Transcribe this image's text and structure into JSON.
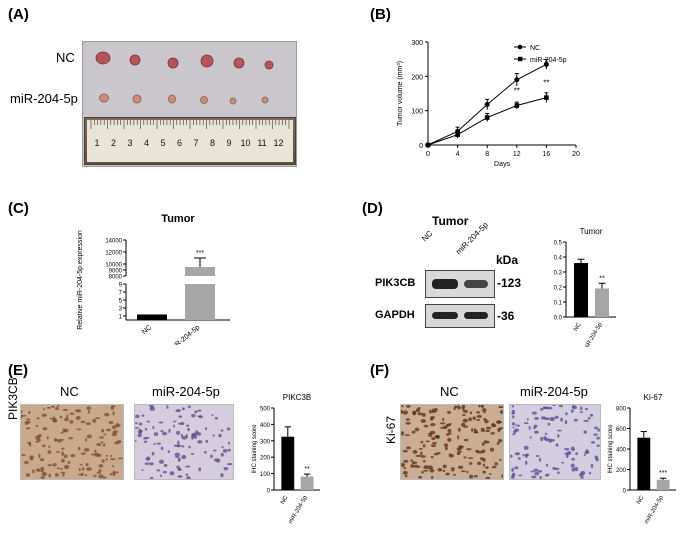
{
  "figure": {
    "panel_labels": [
      "(A)",
      "(B)",
      "(C)",
      "(D)",
      "(E)",
      "(F)"
    ]
  },
  "panelA": {
    "row_labels": [
      "NC",
      "miR-204-5p"
    ],
    "ruler_numbers": [
      "1",
      "2",
      "3",
      "4",
      "5",
      "6",
      "7",
      "8",
      "9",
      "10",
      "11",
      "12"
    ]
  },
  "panelD": {
    "title": "Tumor",
    "lanes": [
      "NC",
      "miR-204-5p"
    ],
    "kda_label": "kDa",
    "bands": [
      {
        "name": "PIK3CB",
        "kda": "-123"
      },
      {
        "name": "GAPDH",
        "kda": "-36"
      }
    ]
  },
  "panelE": {
    "row_label": "PIK3CB",
    "col_labels": [
      "NC",
      "miR-204-5p"
    ]
  },
  "panelF": {
    "row_label": "Ki-67",
    "col_labels": [
      "NC",
      "miR-204-5p"
    ]
  },
  "chart_data": [
    {
      "id": "B",
      "type": "line",
      "title": "",
      "xlabel": "Days",
      "ylabel": "Tumor volume (mm³)",
      "x": [
        0,
        4,
        8,
        12,
        16
      ],
      "xlim": [
        0,
        20
      ],
      "xticks": [
        "0",
        "4",
        "8",
        "12",
        "16",
        "20"
      ],
      "ylim": [
        0,
        300
      ],
      "yticks": [
        "0",
        "100",
        "200",
        "300"
      ],
      "legend_position": "top-right",
      "series": [
        {
          "name": "NC",
          "marker": "circle",
          "values": [
            0,
            40,
            118,
            190,
            235
          ],
          "errors": [
            0,
            12,
            15,
            18,
            14
          ]
        },
        {
          "name": "miR-204-5p",
          "marker": "square",
          "values": [
            0,
            30,
            80,
            115,
            138
          ],
          "errors": [
            0,
            10,
            12,
            10,
            14
          ]
        }
      ],
      "annotations": [
        {
          "x": 12,
          "text": "**"
        },
        {
          "x": 16,
          "text": "**"
        }
      ]
    },
    {
      "id": "C",
      "type": "bar",
      "title": "Tumor",
      "ylabel": "Relative miR-204-5p expression",
      "categories": [
        "NC",
        "miR-204-5p"
      ],
      "values": [
        1,
        9500
      ],
      "errors": [
        0.1,
        1500
      ],
      "colors": [
        "#000000",
        "#a6a6a6"
      ],
      "yticks_upper": [
        "8000",
        "9000",
        "10000",
        "12000",
        "14000"
      ],
      "yticks_lower": [
        "1",
        "3",
        "5",
        "7",
        "9"
      ],
      "axis_break": [
        9,
        8000
      ],
      "annotation": "***"
    },
    {
      "id": "D",
      "type": "bar",
      "title": "Tumor",
      "categories": [
        "NC",
        "miR-204-5p"
      ],
      "values": [
        0.36,
        0.19
      ],
      "errors": [
        0.025,
        0.035
      ],
      "colors": [
        "#000000",
        "#a6a6a6"
      ],
      "ylim": [
        0,
        0.5
      ],
      "yticks": [
        "0.0",
        "0.1",
        "0.2",
        "0.3",
        "0.4",
        "0.5"
      ],
      "annotation": "**"
    },
    {
      "id": "E",
      "type": "bar",
      "title": "PIKC3B",
      "ylabel": "IHC staining score",
      "categories": [
        "NC",
        "miR-204-5p"
      ],
      "values": [
        325,
        82
      ],
      "errors": [
        60,
        15
      ],
      "colors": [
        "#000000",
        "#a6a6a6"
      ],
      "ylim": [
        0,
        500
      ],
      "yticks": [
        "0",
        "100",
        "200",
        "300",
        "400",
        "500"
      ],
      "annotation": "**"
    },
    {
      "id": "F",
      "type": "bar",
      "title": "Ki-67",
      "ylabel": "IHC staining score",
      "categories": [
        "NC",
        "miR-204-5p"
      ],
      "values": [
        510,
        100
      ],
      "errors": [
        60,
        15
      ],
      "colors": [
        "#000000",
        "#a6a6a6"
      ],
      "ylim": [
        0,
        800
      ],
      "yticks": [
        "0",
        "200",
        "400",
        "600",
        "800"
      ],
      "annotation": "***"
    }
  ]
}
